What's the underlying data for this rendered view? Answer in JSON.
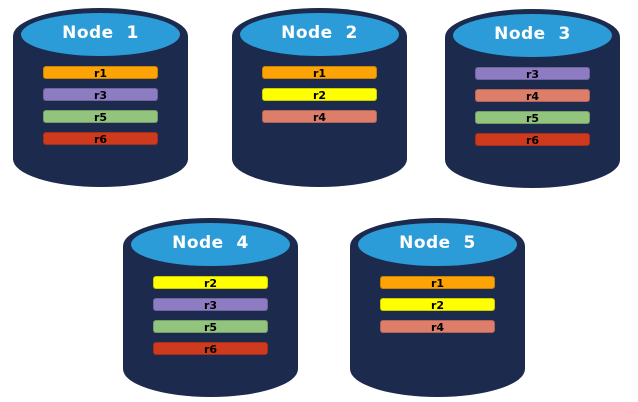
{
  "colors": {
    "page-bg": "#FFFFFF",
    "c-body": "#1B2A4D",
    "c-top": "#2C9CD8",
    "c-title": "#FFFFFF",
    "c-bar-text": "#000000"
  },
  "replica_colors": {
    "r1": "#FCA405",
    "r2": "#FFFF00",
    "r3": "#8E7CC3",
    "r4": "#DD7E6B",
    "r5": "#93C47D",
    "r6": "#CE3A1D"
  },
  "nodes": [
    {
      "title": "Node  1",
      "replicas": [
        "r1",
        "r3",
        "r5",
        "r6"
      ]
    },
    {
      "title": "Node  2",
      "replicas": [
        "r1",
        "r2",
        "r4"
      ]
    },
    {
      "title": "Node  3",
      "replicas": [
        "r3",
        "r4",
        "r5",
        "r6"
      ]
    },
    {
      "title": "Node  4",
      "replicas": [
        "r2",
        "r3",
        "r5",
        "r6"
      ]
    },
    {
      "title": "Node  5",
      "replicas": [
        "r1",
        "r2",
        "r4"
      ]
    }
  ]
}
